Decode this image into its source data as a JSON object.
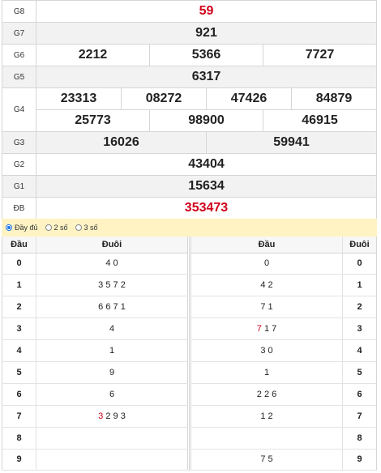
{
  "prizes": {
    "g8": {
      "label": "G8",
      "values": [
        "59"
      ]
    },
    "g7": {
      "label": "G7",
      "values": [
        "921"
      ]
    },
    "g6": {
      "label": "G6",
      "values": [
        "2212",
        "5366",
        "7727"
      ]
    },
    "g5": {
      "label": "G5",
      "values": [
        "6317"
      ]
    },
    "g4": {
      "label": "G4",
      "values": [
        "23313",
        "08272",
        "47426",
        "84879",
        "25773",
        "98900",
        "46915"
      ]
    },
    "g3": {
      "label": "G3",
      "values": [
        "16026",
        "59941"
      ]
    },
    "g2": {
      "label": "G2",
      "values": [
        "43404"
      ]
    },
    "g1": {
      "label": "G1",
      "values": [
        "15634"
      ]
    },
    "db": {
      "label": "ĐB",
      "values": [
        "353473"
      ]
    }
  },
  "highlight_color": "#d0021b",
  "display_options": [
    {
      "label": "Đầy đủ",
      "selected": true
    },
    {
      "label": "2 số",
      "selected": false
    },
    {
      "label": "3 số",
      "selected": false
    }
  ],
  "loto_left": {
    "headers": [
      "Đầu",
      "Đuôi"
    ],
    "rows": [
      {
        "key": "0",
        "digits": "4 0"
      },
      {
        "key": "1",
        "digits": "3 5 7 2"
      },
      {
        "key": "2",
        "digits": "6 6 7 1"
      },
      {
        "key": "3",
        "digits": "4"
      },
      {
        "key": "4",
        "digits": "1"
      },
      {
        "key": "5",
        "digits": "9"
      },
      {
        "key": "6",
        "digits": "6"
      },
      {
        "key": "7",
        "highlight": "3",
        "digits": "2 9 3"
      },
      {
        "key": "8",
        "digits": ""
      },
      {
        "key": "9",
        "digits": ""
      }
    ]
  },
  "loto_right": {
    "headers": [
      "Đầu",
      "Đuôi"
    ],
    "rows": [
      {
        "key": "0",
        "digits": "0"
      },
      {
        "key": "1",
        "digits": "4 2"
      },
      {
        "key": "2",
        "digits": "7 1"
      },
      {
        "key": "3",
        "highlight": "7",
        "digits": "1 7"
      },
      {
        "key": "4",
        "digits": "3 0"
      },
      {
        "key": "5",
        "digits": "1"
      },
      {
        "key": "6",
        "digits": "2 2 6"
      },
      {
        "key": "7",
        "digits": "1 2"
      },
      {
        "key": "8",
        "digits": ""
      },
      {
        "key": "9",
        "digits": "7 5"
      }
    ]
  }
}
